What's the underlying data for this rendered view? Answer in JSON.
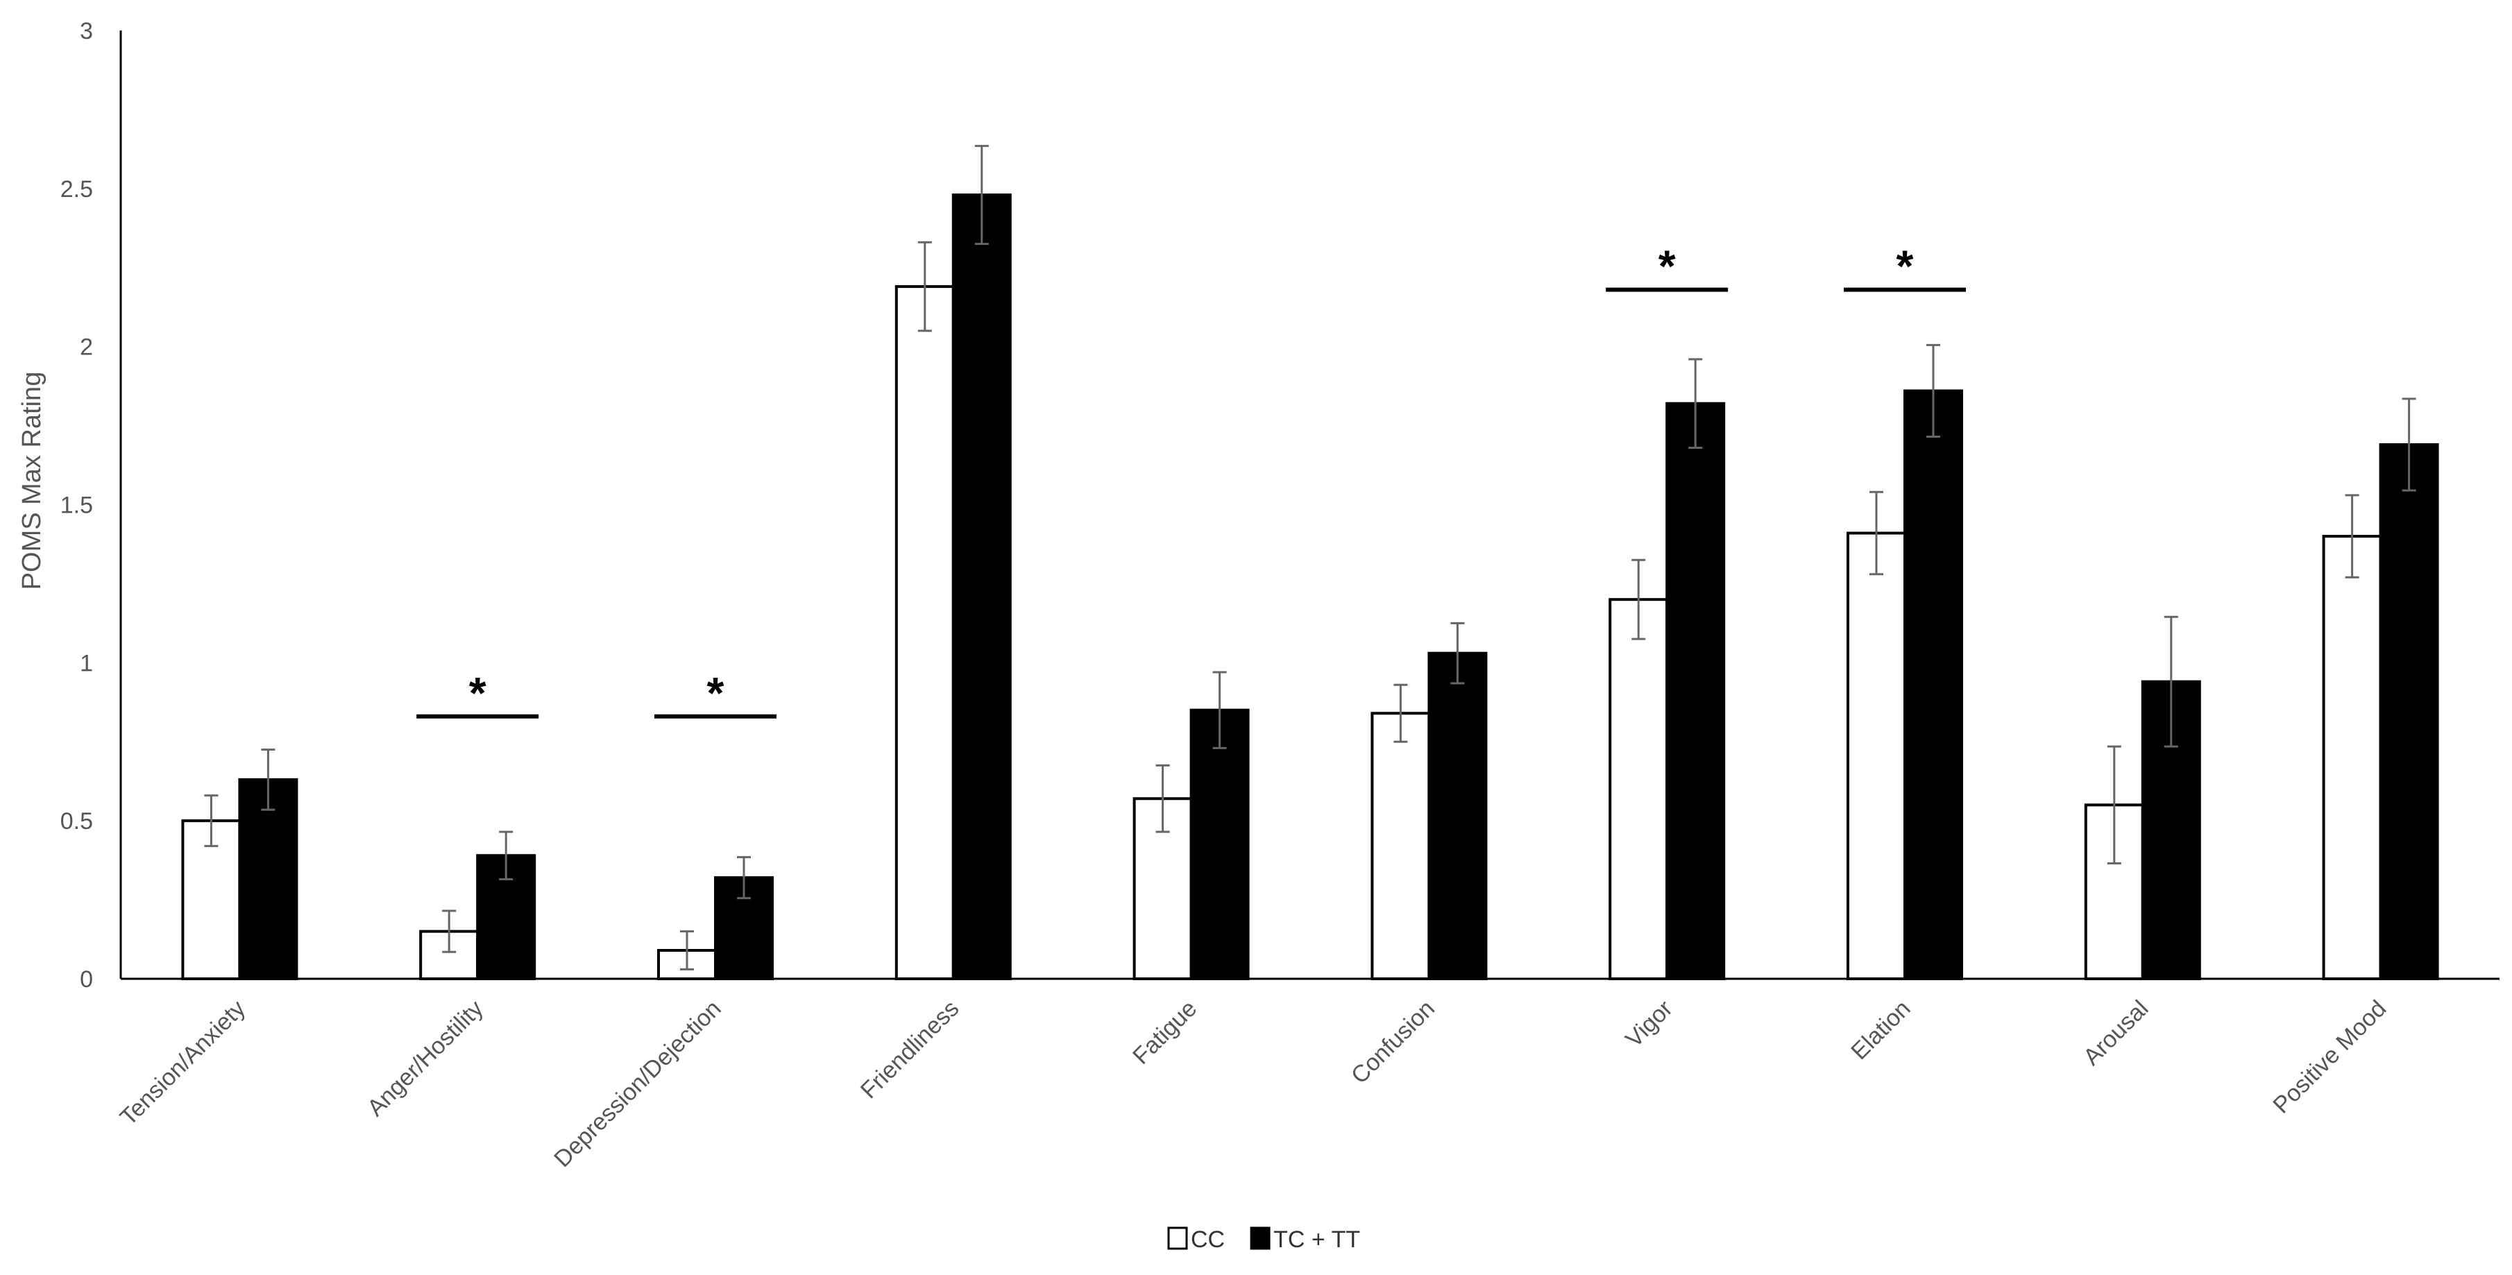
{
  "chart_data": {
    "type": "bar",
    "title": "",
    "xlabel": "",
    "ylabel": "POMS Max Rating",
    "ylim": [
      0,
      3
    ],
    "yticks": [
      "0",
      "0.5",
      "1",
      "1.5",
      "2",
      "2.5",
      "3"
    ],
    "grid": false,
    "legend_position": "bottom-center",
    "categories": [
      "Tension/Anxiety",
      "Anger/Hostility",
      "Depression/Dejection",
      "Friendliness",
      "Fatigue",
      "Confusion",
      "Vigor",
      "Elation",
      "Arousal",
      "Positive Mood"
    ],
    "series": [
      {
        "name": "CC",
        "color": "#ffffff",
        "values": [
          0.5,
          0.15,
          0.09,
          2.19,
          0.57,
          0.84,
          1.2,
          1.41,
          0.55,
          1.4
        ],
        "errors": [
          0.08,
          0.065,
          0.06,
          0.14,
          0.105,
          0.09,
          0.125,
          0.13,
          0.185,
          0.13
        ]
      },
      {
        "name": "TC + TT",
        "color": "#000000",
        "values": [
          0.63,
          0.39,
          0.32,
          2.48,
          0.85,
          1.03,
          1.82,
          1.86,
          0.94,
          1.69
        ],
        "errors": [
          0.095,
          0.075,
          0.065,
          0.155,
          0.12,
          0.095,
          0.14,
          0.145,
          0.205,
          0.145
        ]
      }
    ],
    "significance": [
      {
        "category": "Anger/Hostility",
        "label": "*",
        "level": 0.83
      },
      {
        "category": "Depression/Dejection",
        "label": "*",
        "level": 0.83
      },
      {
        "category": "Vigor",
        "label": "*",
        "level": 2.18
      },
      {
        "category": "Elation",
        "label": "*",
        "level": 2.18
      }
    ]
  }
}
